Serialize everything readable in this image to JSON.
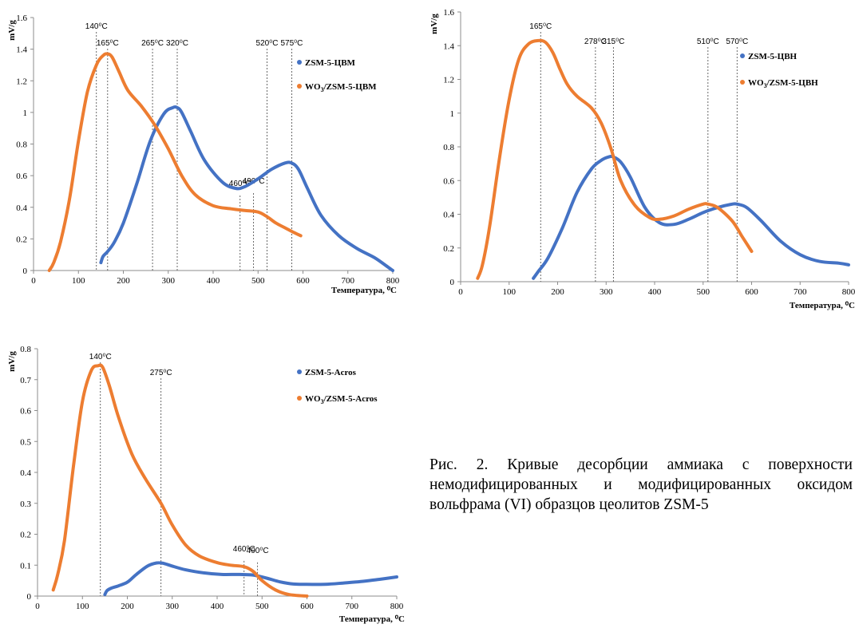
{
  "caption": "Рис. 2. Кривые десорбции аммиака с поверхности немодифицированных и модифицированных оксидом вольфрама (VI) образцов цеолитов ZSM-5",
  "chart_data": [
    {
      "type": "line",
      "title": "",
      "xlabel": "Температура, ⁰C",
      "ylabel": "mV/g",
      "xlim": [
        0,
        800
      ],
      "ylim": [
        0,
        1.6
      ],
      "xticks": [
        0,
        100,
        200,
        300,
        400,
        500,
        600,
        700,
        800
      ],
      "yticks": [
        0,
        0.2,
        0.4,
        0.6,
        0.8,
        1,
        1.2,
        1.4,
        1.6
      ],
      "ytick_labels": [
        "0",
        "0.2",
        "0.4",
        "0.6",
        "0.8",
        "1",
        "1.2",
        "1.4",
        "1.6"
      ],
      "grid": false,
      "legend": "right",
      "series": [
        {
          "name": "ZSM-5-ЦВМ",
          "legend_name": "ZSM-5-ЦВМ",
          "color": "#4472C4",
          "x": [
            150,
            155,
            165,
            180,
            200,
            230,
            260,
            290,
            310,
            320,
            330,
            350,
            380,
            420,
            450,
            470,
            500,
            530,
            560,
            575,
            590,
            610,
            640,
            680,
            720,
            760,
            790,
            800
          ],
          "y": [
            0.05,
            0.09,
            0.12,
            0.18,
            0.3,
            0.55,
            0.82,
            0.99,
            1.03,
            1.03,
            1.0,
            0.88,
            0.7,
            0.56,
            0.52,
            0.53,
            0.58,
            0.64,
            0.68,
            0.68,
            0.64,
            0.52,
            0.35,
            0.22,
            0.14,
            0.08,
            0.02,
            0.0
          ]
        },
        {
          "name": "WO3/ZSM-5-ЦВМ",
          "legend_name": "WO",
          "legend_sub": "3",
          "legend_rest": "/ZSM-5-ЦВМ",
          "color": "#ED7D31",
          "x": [
            35,
            45,
            60,
            80,
            100,
            120,
            140,
            155,
            165,
            175,
            190,
            210,
            240,
            270,
            300,
            330,
            360,
            400,
            440,
            470,
            500,
            520,
            540,
            560,
            580,
            595
          ],
          "y": [
            0.0,
            0.05,
            0.18,
            0.45,
            0.82,
            1.13,
            1.3,
            1.36,
            1.37,
            1.35,
            1.26,
            1.14,
            1.04,
            0.92,
            0.77,
            0.6,
            0.48,
            0.41,
            0.39,
            0.38,
            0.37,
            0.34,
            0.3,
            0.27,
            0.24,
            0.22
          ]
        }
      ],
      "annotations": [
        {
          "label": "140⁰C",
          "x": 140,
          "row": 0
        },
        {
          "label": "165⁰C",
          "x": 165,
          "row": 1
        },
        {
          "label": "265⁰C",
          "x": 265,
          "row": 1
        },
        {
          "label": "320⁰C",
          "x": 320,
          "row": 1
        },
        {
          "label": "520⁰C",
          "x": 520,
          "row": 1
        },
        {
          "label": "575⁰C",
          "x": 575,
          "row": 1
        },
        {
          "label": "460⁰C",
          "x": 460,
          "ly": 0.535
        },
        {
          "label": "490⁰C",
          "x": 490,
          "ly": 0.55
        }
      ]
    },
    {
      "type": "line",
      "title": "",
      "xlabel": "Температура, ⁰C",
      "ylabel": "mV/g",
      "xlim": [
        0,
        800
      ],
      "ylim": [
        0,
        1.6
      ],
      "xticks": [
        0,
        100,
        200,
        300,
        400,
        500,
        600,
        700,
        800
      ],
      "yticks": [
        0,
        0.2,
        0.4,
        0.6,
        0.8,
        1,
        1.2,
        1.4,
        1.6
      ],
      "ytick_labels": [
        "0",
        "0.2",
        "0.4",
        "0.6",
        "0.8",
        "1",
        "1.2",
        "1.4",
        "1.6"
      ],
      "grid": false,
      "legend": "right",
      "series": [
        {
          "name": "ZSM-5-ЦВН",
          "legend_name": "ZSM-5-ЦВН",
          "color": "#4472C4",
          "x": [
            150,
            160,
            180,
            210,
            240,
            270,
            290,
            305,
            315,
            330,
            350,
            380,
            410,
            440,
            470,
            500,
            530,
            560,
            570,
            590,
            620,
            660,
            700,
            740,
            780,
            800
          ],
          "y": [
            0.02,
            0.06,
            0.14,
            0.32,
            0.53,
            0.67,
            0.72,
            0.74,
            0.74,
            0.71,
            0.62,
            0.44,
            0.35,
            0.34,
            0.37,
            0.41,
            0.44,
            0.46,
            0.46,
            0.44,
            0.36,
            0.24,
            0.16,
            0.12,
            0.11,
            0.1
          ]
        },
        {
          "name": "WO3/ZSM-5-ЦВН",
          "legend_name": "WO",
          "legend_sub": "3",
          "legend_rest": "/ZSM-5-ЦВН",
          "color": "#ED7D31",
          "x": [
            35,
            45,
            60,
            80,
            100,
            120,
            140,
            160,
            175,
            190,
            205,
            220,
            240,
            270,
            290,
            310,
            330,
            360,
            390,
            410,
            440,
            470,
            500,
            510,
            530,
            560,
            580,
            600
          ],
          "y": [
            0.02,
            0.1,
            0.33,
            0.73,
            1.08,
            1.32,
            1.41,
            1.43,
            1.42,
            1.36,
            1.26,
            1.17,
            1.1,
            1.03,
            0.94,
            0.79,
            0.6,
            0.45,
            0.38,
            0.37,
            0.39,
            0.43,
            0.46,
            0.46,
            0.44,
            0.36,
            0.27,
            0.18
          ]
        }
      ],
      "annotations": [
        {
          "label": "165⁰C",
          "x": 165,
          "row": 0
        },
        {
          "label": "278⁰C",
          "x": 278,
          "row": 1
        },
        {
          "label": "315⁰C",
          "x": 315,
          "row": 1
        },
        {
          "label": "510⁰C",
          "x": 510,
          "row": 1
        },
        {
          "label": "570⁰C",
          "x": 570,
          "row": 1
        }
      ]
    },
    {
      "type": "line",
      "title": "",
      "xlabel": "Температура, ⁰C",
      "ylabel": "mV/g",
      "xlim": [
        0,
        800
      ],
      "ylim": [
        0,
        0.8
      ],
      "xticks": [
        0,
        100,
        200,
        300,
        400,
        500,
        600,
        700,
        800
      ],
      "yticks": [
        0,
        0.1,
        0.2,
        0.3,
        0.4,
        0.5,
        0.6,
        0.7,
        0.8
      ],
      "ytick_labels": [
        "0",
        "0.1",
        "0.2",
        "0.3",
        "0.4",
        "0.5",
        "0.6",
        "0.7",
        "0.8"
      ],
      "grid": false,
      "legend": "right",
      "series": [
        {
          "name": "ZSM-5-Acros",
          "legend_name": "ZSM-5-Acros",
          "color": "#4472C4",
          "x": [
            150,
            155,
            165,
            180,
            200,
            220,
            245,
            265,
            280,
            300,
            330,
            370,
            410,
            450,
            480,
            510,
            540,
            570,
            600,
            640,
            680,
            720,
            760,
            800
          ],
          "y": [
            0.005,
            0.018,
            0.026,
            0.033,
            0.045,
            0.07,
            0.097,
            0.107,
            0.106,
            0.097,
            0.085,
            0.075,
            0.07,
            0.07,
            0.068,
            0.058,
            0.046,
            0.039,
            0.038,
            0.038,
            0.042,
            0.047,
            0.054,
            0.062
          ]
        },
        {
          "name": "WO3/ZSM-5-Acros",
          "legend_name": "WO",
          "legend_sub": "3",
          "legend_rest": "/ZSM-5-Acros",
          "color": "#ED7D31",
          "x": [
            35,
            45,
            60,
            80,
            100,
            120,
            135,
            145,
            160,
            180,
            210,
            240,
            275,
            300,
            330,
            360,
            400,
            430,
            460,
            480,
            500,
            530,
            560,
            600
          ],
          "y": [
            0.02,
            0.07,
            0.18,
            0.42,
            0.63,
            0.73,
            0.745,
            0.74,
            0.68,
            0.58,
            0.46,
            0.38,
            0.3,
            0.23,
            0.165,
            0.13,
            0.108,
            0.1,
            0.095,
            0.08,
            0.05,
            0.02,
            0.005,
            0.0
          ]
        }
      ],
      "annotations": [
        {
          "label": "140⁰C",
          "x": 140,
          "row": 0
        },
        {
          "label": "275⁰C",
          "x": 275,
          "row": 1
        },
        {
          "label": "460⁰C",
          "x": 460,
          "ly": 0.145
        },
        {
          "label": "490⁰C",
          "x": 490,
          "ly": 0.14
        }
      ]
    }
  ]
}
